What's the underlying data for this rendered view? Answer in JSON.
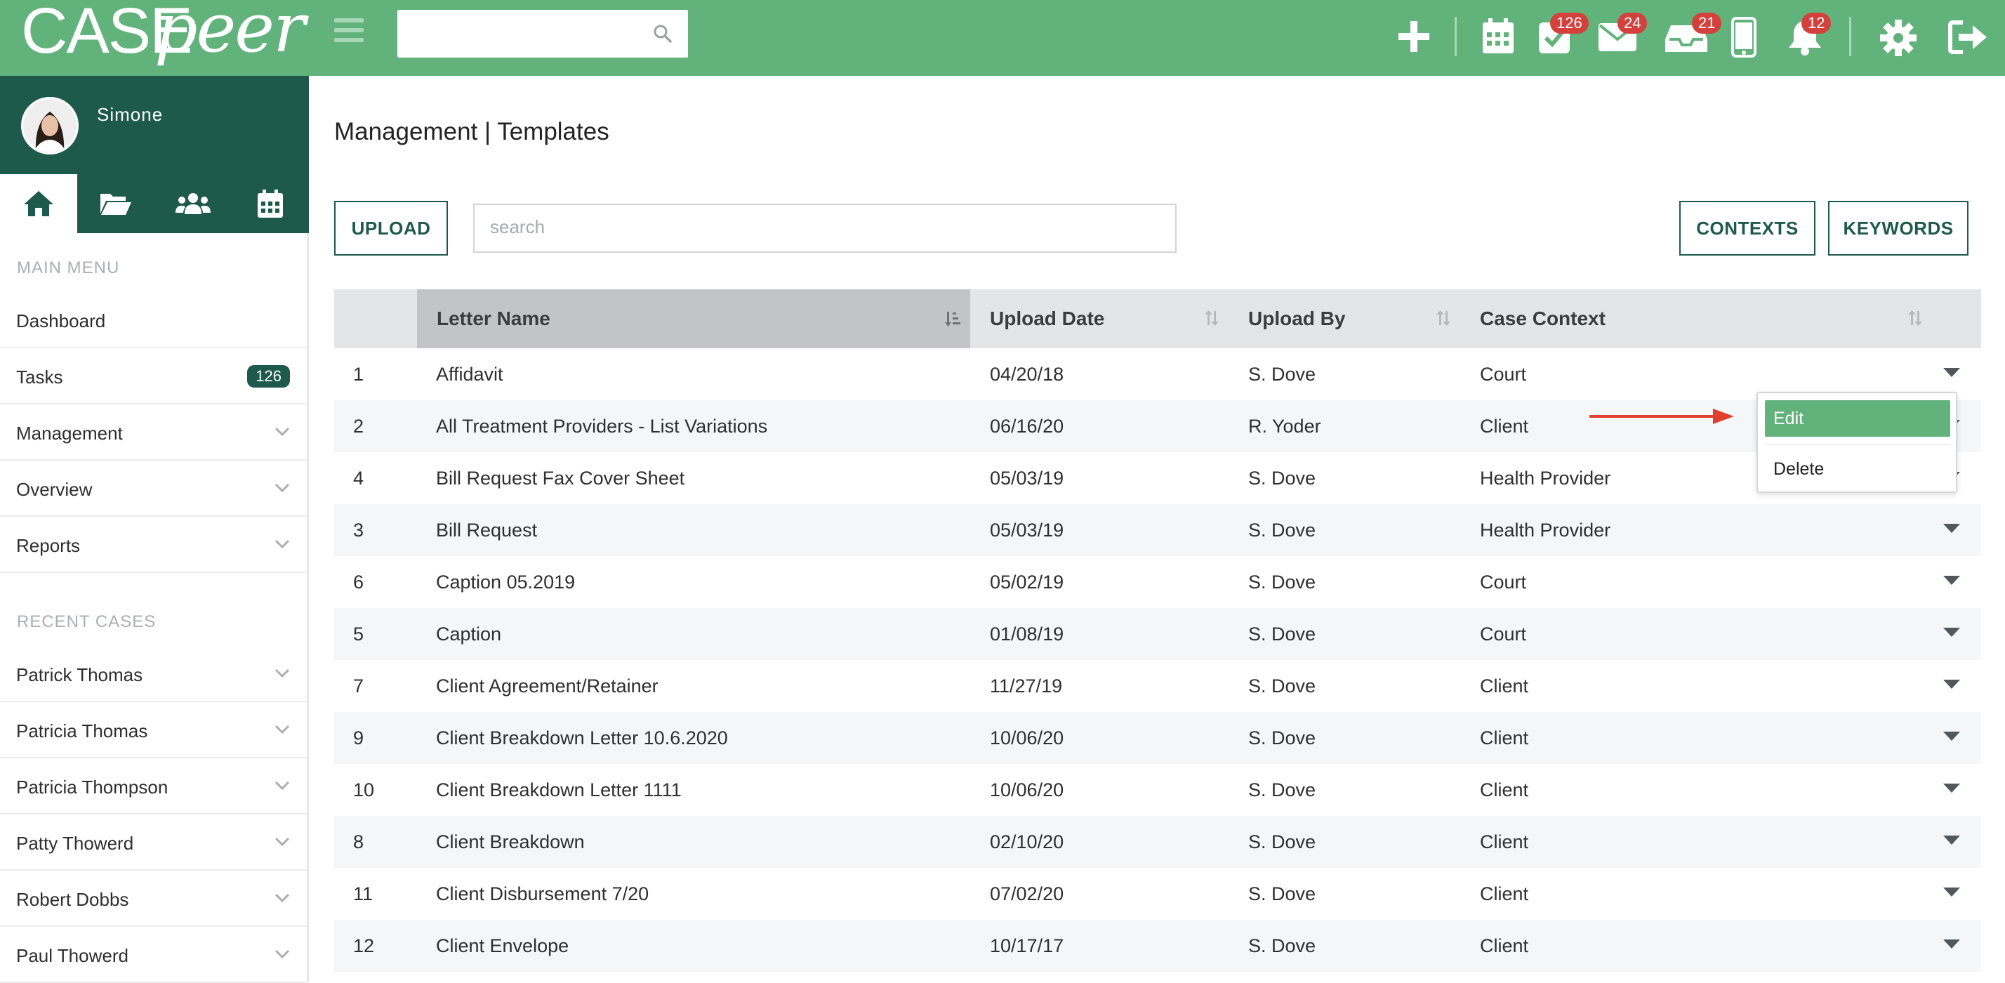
{
  "app": {
    "logo_text_case": "CASE",
    "logo_text_peer": "peer",
    "brand_color": "#62b27b",
    "dark_color": "#1e5a4b",
    "badge_color": "#d3413c"
  },
  "topbar": {
    "search_placeholder": "",
    "icons": [
      "plus-icon",
      "calendar-icon",
      "tasks-check-icon",
      "mail-icon",
      "inbox-tray-icon",
      "phone-icon",
      "bell-icon",
      "gear-icon",
      "logout-icon"
    ],
    "badges": {
      "tasks": "126",
      "mail": "24",
      "inbox": "21",
      "notifications": "12"
    }
  },
  "sidebar": {
    "user_name": "Simone",
    "tabs": [
      "home-icon",
      "folder-open-icon",
      "users-icon",
      "calendar-icon"
    ],
    "main_menu_title": "MAIN MENU",
    "main_menu": [
      {
        "label": "Dashboard"
      },
      {
        "label": "Tasks",
        "count": "126"
      },
      {
        "label": "Management"
      },
      {
        "label": "Overview"
      },
      {
        "label": "Reports"
      }
    ],
    "recent_title": "RECENT CASES",
    "recent_cases": [
      {
        "label": "Patrick Thomas"
      },
      {
        "label": "Patricia Thomas"
      },
      {
        "label": "Patricia Thompson"
      },
      {
        "label": "Patty Thowerd"
      },
      {
        "label": "Robert Dobbs"
      },
      {
        "label": "Paul Thowerd"
      }
    ]
  },
  "main": {
    "title": "Management | Templates",
    "upload_label": "UPLOAD",
    "search_placeholder": "search",
    "contexts_label": "CONTEXTS",
    "keywords_label": "KEYWORDS",
    "columns": [
      "Letter Name",
      "Upload Date",
      "Upload By",
      "Case Context"
    ],
    "rows": [
      {
        "num": "1",
        "name": "Affidavit",
        "date": "04/20/18",
        "by": "S. Dove",
        "context": "Court"
      },
      {
        "num": "2",
        "name": "All Treatment Providers - List Variations",
        "date": "06/16/20",
        "by": "R. Yoder",
        "context": "Client"
      },
      {
        "num": "4",
        "name": "Bill Request Fax Cover Sheet",
        "date": "05/03/19",
        "by": "S. Dove",
        "context": "Health Provider"
      },
      {
        "num": "3",
        "name": "Bill Request",
        "date": "05/03/19",
        "by": "S. Dove",
        "context": "Health Provider"
      },
      {
        "num": "6",
        "name": "Caption 05.2019",
        "date": "05/02/19",
        "by": "S. Dove",
        "context": "Court"
      },
      {
        "num": "5",
        "name": "Caption",
        "date": "01/08/19",
        "by": "S. Dove",
        "context": "Court"
      },
      {
        "num": "7",
        "name": "Client Agreement/Retainer",
        "date": "11/27/19",
        "by": "S. Dove",
        "context": "Client"
      },
      {
        "num": "9",
        "name": "Client Breakdown Letter 10.6.2020",
        "date": "10/06/20",
        "by": "S. Dove",
        "context": "Client"
      },
      {
        "num": "10",
        "name": "Client Breakdown Letter 1111",
        "date": "10/06/20",
        "by": "S. Dove",
        "context": "Client"
      },
      {
        "num": "8",
        "name": "Client Breakdown",
        "date": "02/10/20",
        "by": "S. Dove",
        "context": "Client"
      },
      {
        "num": "11",
        "name": "Client Disbursement 7/20",
        "date": "07/02/20",
        "by": "S. Dove",
        "context": "Client"
      },
      {
        "num": "12",
        "name": "Client Envelope",
        "date": "10/17/17",
        "by": "S. Dove",
        "context": "Client"
      }
    ],
    "dropdown": {
      "edit_label": "Edit",
      "delete_label": "Delete"
    },
    "annotation_arrow_color": "#e0412f"
  }
}
